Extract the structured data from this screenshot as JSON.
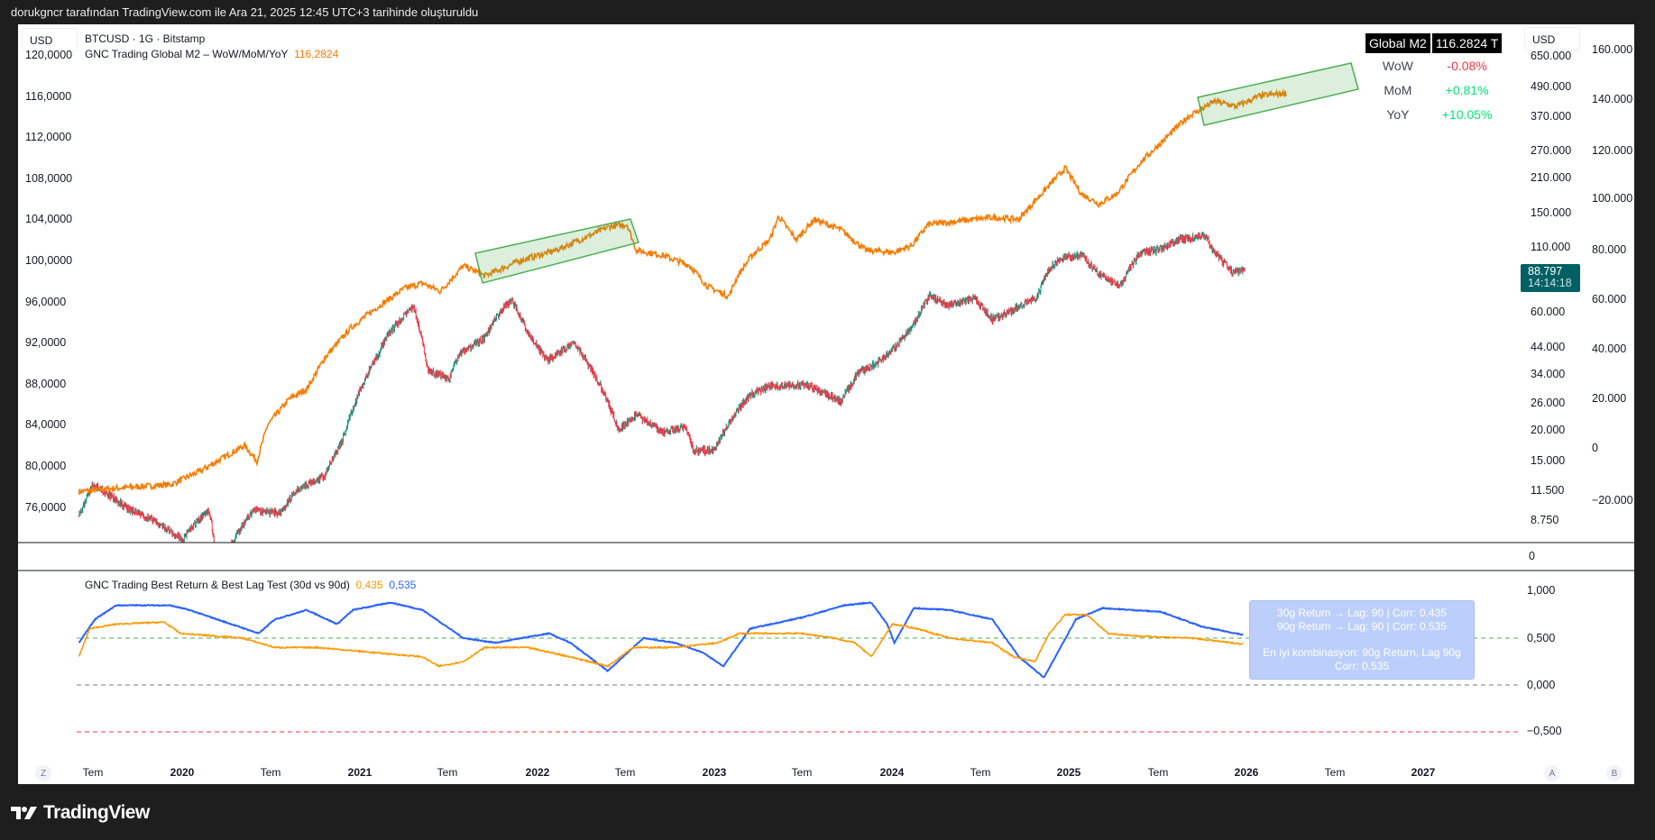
{
  "header": {
    "credit": "dorukgncr tarafından TradingView.com ile Ara 21, 2025 12:45 UTC+3 tarihinde oluşturuldu"
  },
  "main": {
    "currency_left": "USD",
    "currency_right": "USD",
    "symbol": "BTCUSD · 1G · Bitstamp",
    "indicator": "GNC Trading Global M2 – WoW/MoM/YoY",
    "indicator_value": "116,2824",
    "left_axis": [
      "120,0000",
      "116,0000",
      "112,0000",
      "108,0000",
      "104,0000",
      "100,0000",
      "96,0000",
      "92,0000",
      "88,0000",
      "84,0000",
      "80,0000",
      "76,0000"
    ],
    "right_axis_1": [
      "650.000",
      "490.000",
      "370.000",
      "270.000",
      "210.000",
      "150.000",
      "110.000",
      "60.000",
      "44.000",
      "34.000",
      "26.000",
      "20.000",
      "15.000",
      "11.500",
      "8.750"
    ],
    "right_axis_2": [
      "160.000",
      "140.000",
      "120.000",
      "100.000",
      "80.000",
      "60.000",
      "40.000",
      "20.000",
      "0",
      "−20.000"
    ],
    "volume_axis": "0",
    "price_label": {
      "price": "88.797",
      "countdown": "14:14:18"
    },
    "m2_table": {
      "title": "Global M2",
      "value": "116.2824 T",
      "rows": [
        {
          "label": "WoW",
          "value": "-0.08%",
          "color": "#f23645"
        },
        {
          "label": "MoM",
          "value": "+0.81%",
          "color": "#00e676"
        },
        {
          "label": "YoY",
          "value": "+10.05%",
          "color": "#00e676"
        }
      ]
    }
  },
  "lower": {
    "title": "GNC Trading Best Return & Best Lag Test (30d vs 90d)",
    "v30": "0,435",
    "v90": "0,535",
    "axis": [
      "1,000",
      "0,500",
      "0,000",
      "−0,500"
    ],
    "tooltip": [
      "30g Return → Lag: 90 | Corr: 0.435",
      "90g Return → Lag: 90 | Corr: 0.535",
      "En iyi kombinasyon: 90g Return, Lag 90g",
      "Corr: 0.535"
    ]
  },
  "time_axis": [
    "Tem",
    "2020",
    "Tem",
    "2021",
    "Tem",
    "2022",
    "Tem",
    "2023",
    "Tem",
    "2024",
    "Tem",
    "2025",
    "Tem",
    "2026",
    "Tem",
    "2027"
  ],
  "buttons": {
    "zoom": "Z",
    "auto": "A",
    "log": "B"
  },
  "footer": {
    "logo": "TradingView"
  },
  "colors": {
    "up": "#089981",
    "down": "#f23645",
    "m2": "#f57c00",
    "corr30": "#ff9800",
    "corr90": "#2962ff"
  },
  "chart_data": {
    "type": "line",
    "btc_keypoints": [
      [
        2019.42,
        9
      ],
      [
        2019.5,
        12
      ],
      [
        2019.7,
        9.5
      ],
      [
        2019.85,
        8.5
      ],
      [
        2020.0,
        7.2
      ],
      [
        2020.15,
        9.5
      ],
      [
        2020.2,
        5.2
      ],
      [
        2020.4,
        9.5
      ],
      [
        2020.55,
        9.2
      ],
      [
        2020.65,
        11.5
      ],
      [
        2020.8,
        13
      ],
      [
        2020.9,
        18
      ],
      [
        2021.0,
        29
      ],
      [
        2021.1,
        40
      ],
      [
        2021.15,
        48
      ],
      [
        2021.25,
        58
      ],
      [
        2021.3,
        63
      ],
      [
        2021.38,
        35
      ],
      [
        2021.5,
        32
      ],
      [
        2021.55,
        40
      ],
      [
        2021.7,
        47
      ],
      [
        2021.8,
        62
      ],
      [
        2021.85,
        67
      ],
      [
        2021.95,
        48
      ],
      [
        2022.05,
        38
      ],
      [
        2022.2,
        45
      ],
      [
        2022.35,
        30
      ],
      [
        2022.45,
        20
      ],
      [
        2022.55,
        23
      ],
      [
        2022.7,
        19.5
      ],
      [
        2022.83,
        20.5
      ],
      [
        2022.87,
        16.5
      ],
      [
        2022.99,
        16.5
      ],
      [
        2023.1,
        23
      ],
      [
        2023.2,
        28
      ],
      [
        2023.3,
        30
      ],
      [
        2023.5,
        30.5
      ],
      [
        2023.7,
        26
      ],
      [
        2023.8,
        34
      ],
      [
        2023.9,
        37
      ],
      [
        2024.0,
        43
      ],
      [
        2024.1,
        52
      ],
      [
        2024.2,
        70
      ],
      [
        2024.3,
        64
      ],
      [
        2024.45,
        68
      ],
      [
        2024.55,
        56
      ],
      [
        2024.65,
        60
      ],
      [
        2024.8,
        69
      ],
      [
        2024.87,
        90
      ],
      [
        2024.95,
        100
      ],
      [
        2025.05,
        102
      ],
      [
        2025.15,
        85
      ],
      [
        2025.27,
        77
      ],
      [
        2025.38,
        104
      ],
      [
        2025.5,
        108
      ],
      [
        2025.6,
        118
      ],
      [
        2025.75,
        122
      ],
      [
        2025.78,
        110
      ],
      [
        2025.85,
        95
      ],
      [
        2025.9,
        87
      ],
      [
        2025.97,
        88.8
      ]
    ],
    "m2_keypoints": [
      [
        2019.42,
        77.5
      ],
      [
        2019.6,
        77.8
      ],
      [
        2019.94,
        78.2
      ],
      [
        2020.1,
        79.5
      ],
      [
        2020.25,
        81
      ],
      [
        2020.35,
        82
      ],
      [
        2020.42,
        80.5
      ],
      [
        2020.48,
        84
      ],
      [
        2020.6,
        86.5
      ],
      [
        2020.7,
        87.5
      ],
      [
        2020.8,
        90.5
      ],
      [
        2020.95,
        93.5
      ],
      [
        2021.1,
        95.5
      ],
      [
        2021.25,
        97.3
      ],
      [
        2021.35,
        97.8
      ],
      [
        2021.45,
        97
      ],
      [
        2021.58,
        99.5
      ],
      [
        2021.7,
        98.5
      ],
      [
        2021.9,
        100
      ],
      [
        2022.1,
        101
      ],
      [
        2022.3,
        102.5
      ],
      [
        2022.4,
        103.3
      ],
      [
        2022.5,
        103.5
      ],
      [
        2022.55,
        101
      ],
      [
        2022.7,
        100.5
      ],
      [
        2022.85,
        99.5
      ],
      [
        2022.95,
        97.5
      ],
      [
        2023.07,
        96.5
      ],
      [
        2023.12,
        98.5
      ],
      [
        2023.2,
        100.5
      ],
      [
        2023.3,
        102
      ],
      [
        2023.35,
        104.3
      ],
      [
        2023.45,
        102
      ],
      [
        2023.55,
        104
      ],
      [
        2023.7,
        103
      ],
      [
        2023.84,
        101
      ],
      [
        2024.0,
        100.8
      ],
      [
        2024.1,
        101.5
      ],
      [
        2024.19,
        103.5
      ],
      [
        2024.35,
        103.8
      ],
      [
        2024.55,
        104.2
      ],
      [
        2024.7,
        104
      ],
      [
        2024.8,
        106
      ],
      [
        2024.96,
        109
      ],
      [
        2025.05,
        106.5
      ],
      [
        2025.15,
        105.5
      ],
      [
        2025.25,
        106.5
      ],
      [
        2025.38,
        109.5
      ],
      [
        2025.5,
        111.5
      ],
      [
        2025.65,
        114
      ],
      [
        2025.8,
        115.5
      ],
      [
        2025.92,
        115
      ],
      [
        2026.05,
        116
      ],
      [
        2026.2,
        116.3
      ]
    ],
    "corr90_keypoints": [
      [
        2019.42,
        0.45
      ],
      [
        2019.51,
        0.7
      ],
      [
        2019.63,
        0.85
      ],
      [
        2019.93,
        0.85
      ],
      [
        2020.04,
        0.8
      ],
      [
        2020.43,
        0.55
      ],
      [
        2020.52,
        0.7
      ],
      [
        2020.7,
        0.8
      ],
      [
        2020.87,
        0.65
      ],
      [
        2020.96,
        0.8
      ],
      [
        2021.17,
        0.88
      ],
      [
        2021.35,
        0.8
      ],
      [
        2021.58,
        0.5
      ],
      [
        2021.76,
        0.45
      ],
      [
        2022.06,
        0.55
      ],
      [
        2022.18,
        0.45
      ],
      [
        2022.39,
        0.15
      ],
      [
        2022.59,
        0.5
      ],
      [
        2022.77,
        0.45
      ],
      [
        2022.92,
        0.35
      ],
      [
        2023.04,
        0.2
      ],
      [
        2023.19,
        0.6
      ],
      [
        2023.48,
        0.72
      ],
      [
        2023.72,
        0.85
      ],
      [
        2023.87,
        0.88
      ],
      [
        2023.96,
        0.65
      ],
      [
        2024.0,
        0.45
      ],
      [
        2024.11,
        0.82
      ],
      [
        2024.31,
        0.8
      ],
      [
        2024.55,
        0.7
      ],
      [
        2024.7,
        0.3
      ],
      [
        2024.84,
        0.08
      ],
      [
        2025.02,
        0.7
      ],
      [
        2025.17,
        0.82
      ],
      [
        2025.5,
        0.78
      ],
      [
        2025.73,
        0.62
      ],
      [
        2025.96,
        0.535
      ]
    ],
    "corr30_keypoints": [
      [
        2019.42,
        0.3
      ],
      [
        2019.48,
        0.6
      ],
      [
        2019.63,
        0.65
      ],
      [
        2019.9,
        0.67
      ],
      [
        2019.99,
        0.55
      ],
      [
        2020.34,
        0.5
      ],
      [
        2020.52,
        0.4
      ],
      [
        2020.76,
        0.4
      ],
      [
        2021.05,
        0.35
      ],
      [
        2021.35,
        0.3
      ],
      [
        2021.44,
        0.2
      ],
      [
        2021.58,
        0.25
      ],
      [
        2021.7,
        0.4
      ],
      [
        2021.94,
        0.4
      ],
      [
        2022.18,
        0.3
      ],
      [
        2022.39,
        0.2
      ],
      [
        2022.53,
        0.4
      ],
      [
        2022.77,
        0.4
      ],
      [
        2023.01,
        0.45
      ],
      [
        2023.13,
        0.55
      ],
      [
        2023.48,
        0.55
      ],
      [
        2023.66,
        0.5
      ],
      [
        2023.78,
        0.45
      ],
      [
        2023.87,
        0.3
      ],
      [
        2023.99,
        0.65
      ],
      [
        2024.13,
        0.6
      ],
      [
        2024.31,
        0.5
      ],
      [
        2024.55,
        0.45
      ],
      [
        2024.67,
        0.3
      ],
      [
        2024.79,
        0.25
      ],
      [
        2024.87,
        0.55
      ],
      [
        2024.96,
        0.75
      ],
      [
        2025.08,
        0.75
      ],
      [
        2025.2,
        0.55
      ],
      [
        2025.38,
        0.52
      ],
      [
        2025.67,
        0.5
      ],
      [
        2025.96,
        0.435
      ]
    ],
    "reference_lines": [
      0.5,
      0,
      -0.5
    ],
    "x_range": [
      2019.3,
      2027.6
    ]
  }
}
